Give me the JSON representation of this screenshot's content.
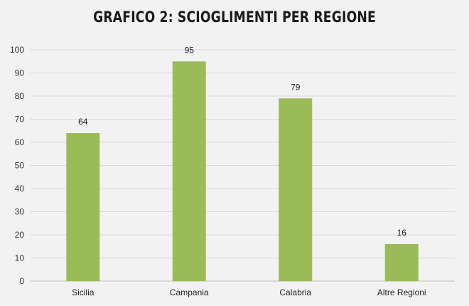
{
  "chart_data": {
    "type": "bar",
    "title": "GRAFICO 2: SCIOGLIMENTI PER REGIONE",
    "categories": [
      "Sicilia",
      "Campania",
      "Calabria",
      "Altre Regioni"
    ],
    "values": [
      64,
      95,
      79,
      16
    ],
    "data_labels": [
      "64",
      "95",
      "79",
      "16"
    ],
    "ylim": [
      0,
      100
    ],
    "yticks": [
      0,
      10,
      20,
      30,
      40,
      50,
      60,
      70,
      80,
      90,
      100
    ],
    "grid": true,
    "legend": "none",
    "bar_color": "#9bbb59",
    "background_color": "#f2f2f2",
    "grid_color": "#d9d9d9"
  }
}
